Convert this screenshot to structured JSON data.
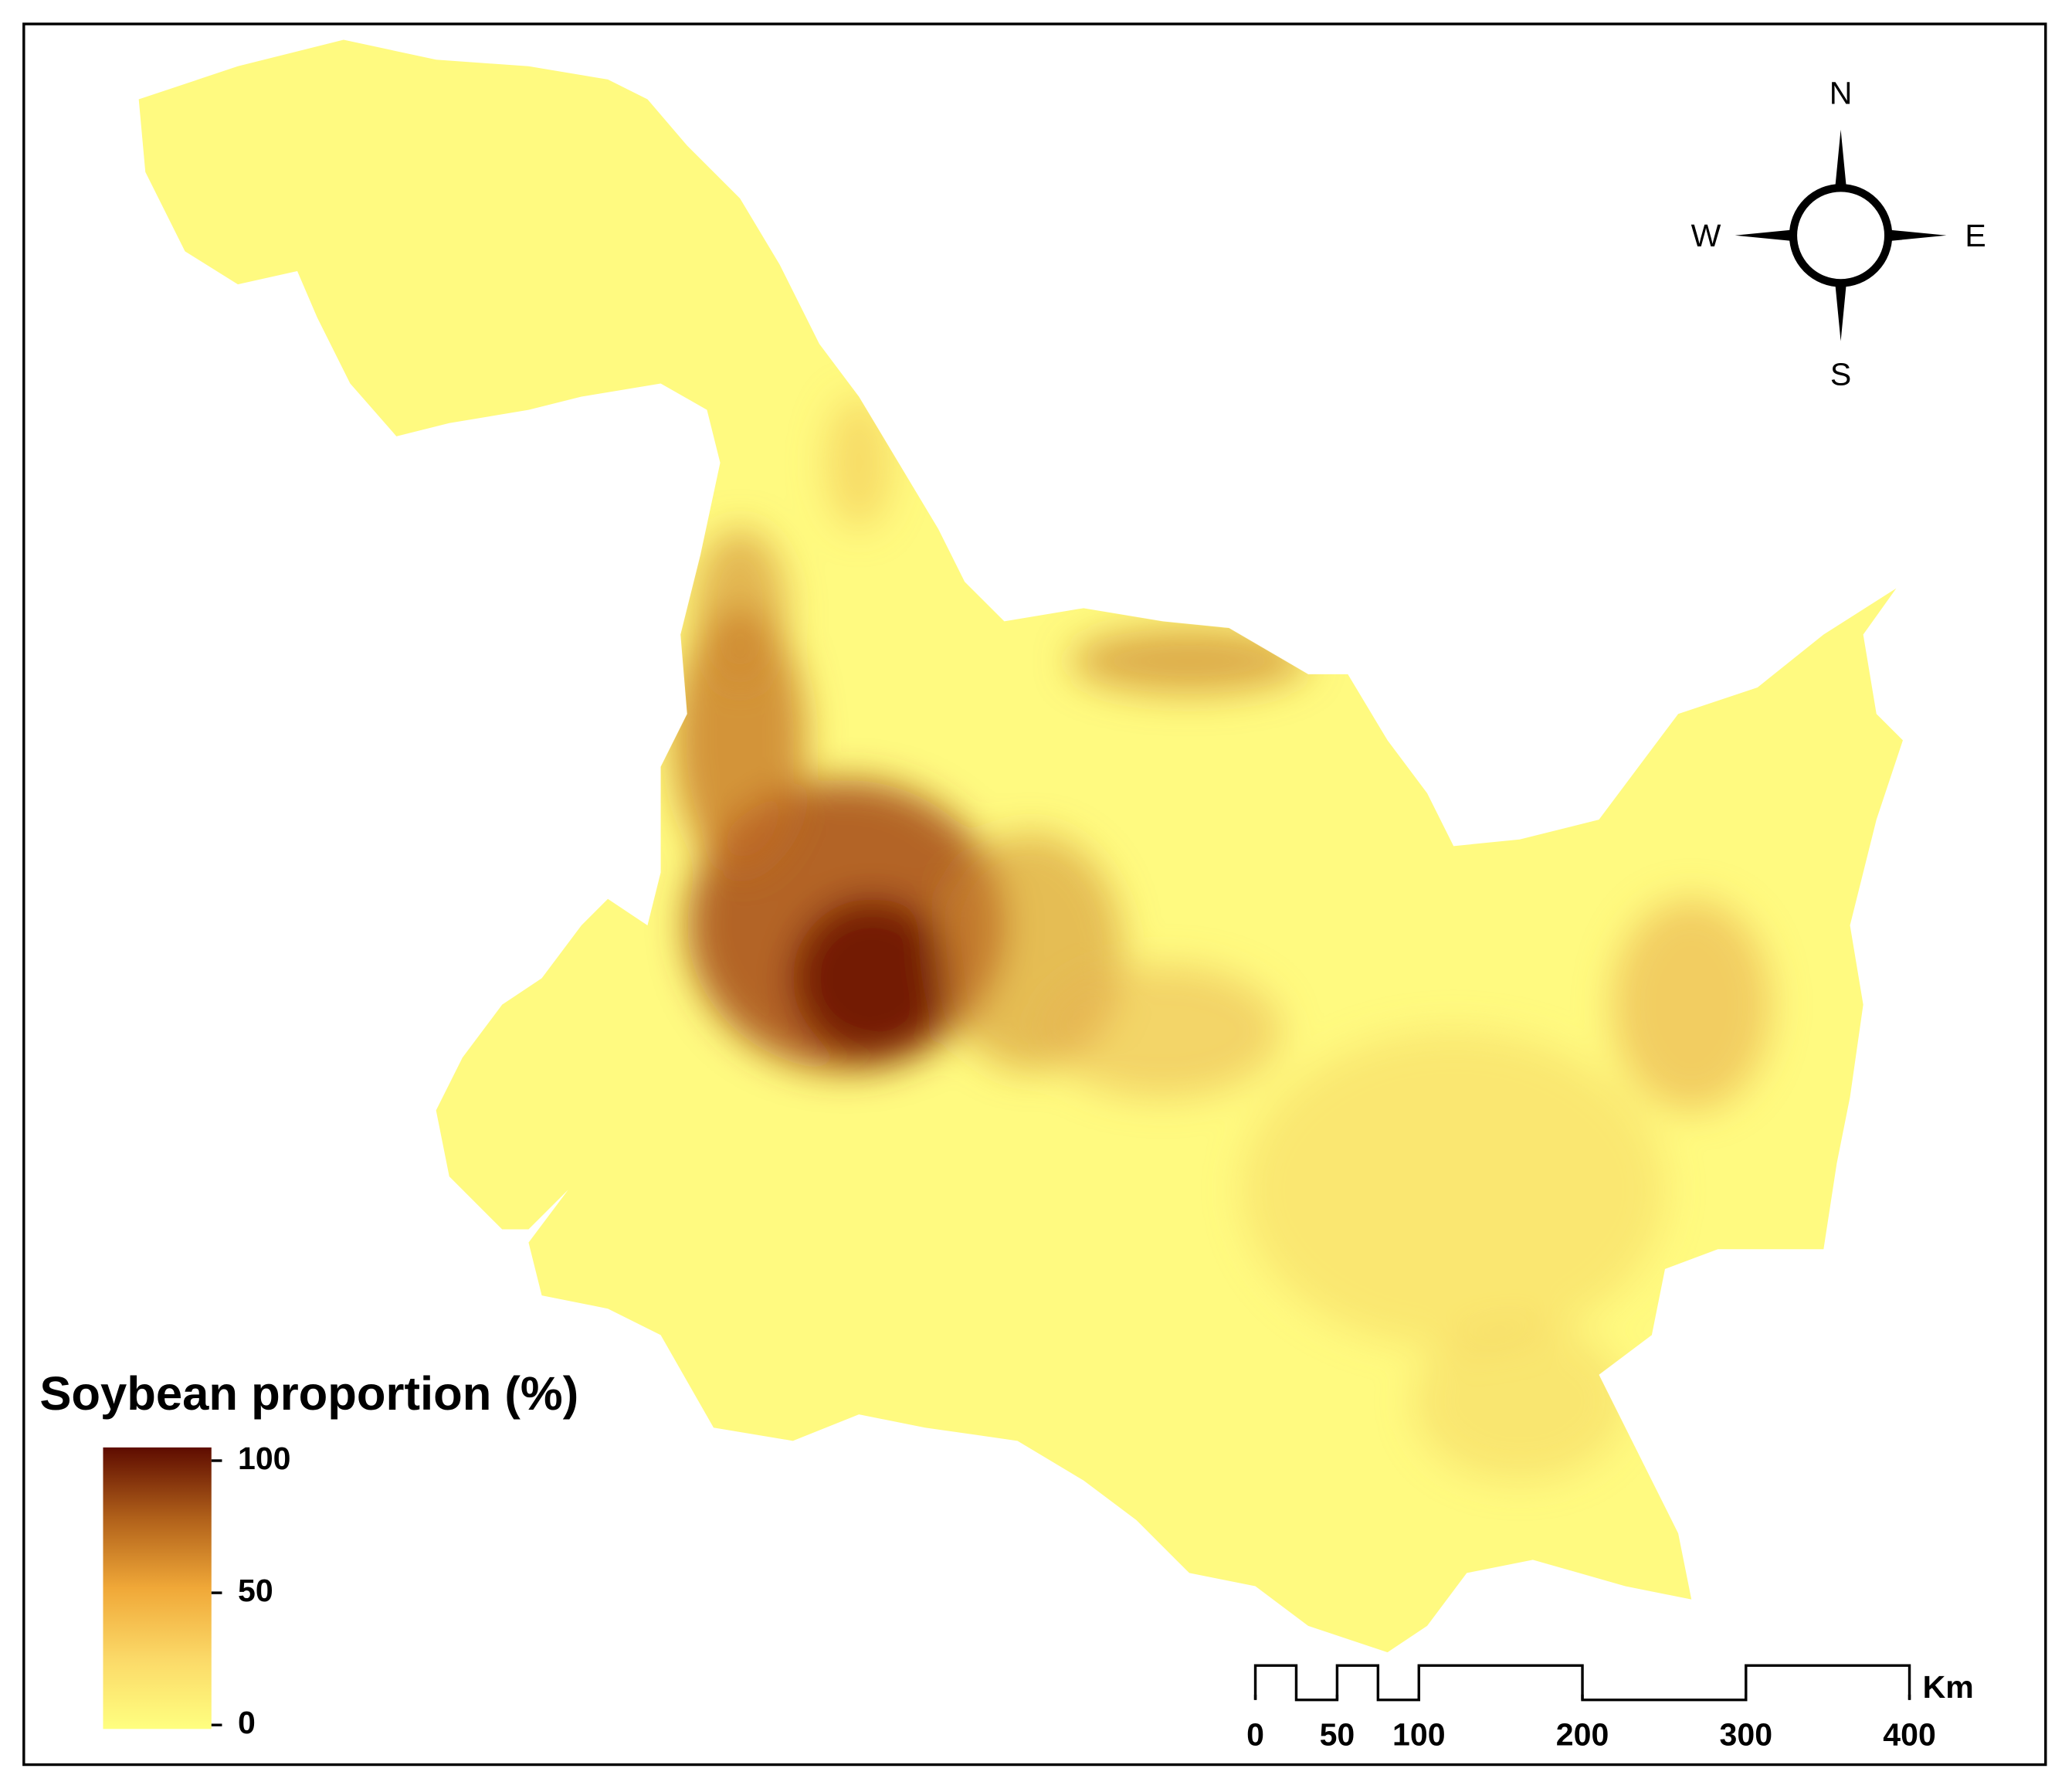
{
  "title": "Soybean proportion (%)",
  "legend": {
    "ticks": [
      0,
      50,
      100
    ]
  },
  "compass": {
    "north": "N",
    "south": "S",
    "east": "E",
    "west": "W"
  },
  "scale_bar": {
    "ticks": [
      0,
      50,
      100,
      200,
      300,
      400
    ],
    "unit": "Km"
  }
}
